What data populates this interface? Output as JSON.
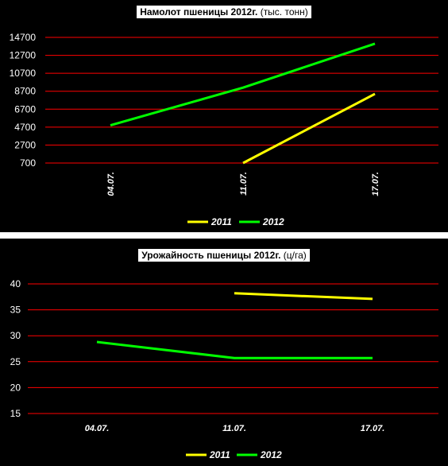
{
  "chart_data": [
    {
      "type": "line",
      "title_bold": "Намолот пшеницы 2012г.",
      "title_rest": " (тыс. тонн)",
      "categories": [
        "04.07.",
        "11.07.",
        "17.07."
      ],
      "yticks": [
        "14700",
        "12700",
        "10700",
        "8700",
        "6700",
        "4700",
        "2700",
        "700"
      ],
      "ylim": [
        700,
        14700
      ],
      "series": [
        {
          "name": "2011",
          "color": "#ffff00",
          "values": [
            null,
            700,
            8400
          ]
        },
        {
          "name": "2012",
          "color": "#00ff00",
          "values": [
            4900,
            9100,
            14000
          ]
        }
      ],
      "grid": true,
      "legend": "bottom",
      "xtick_rotated": true
    },
    {
      "type": "line",
      "title_bold": "Урожайность пшеницы 2012г.",
      "title_rest": " (ц/га)",
      "categories": [
        "04.07.",
        "11.07.",
        "17.07."
      ],
      "yticks": [
        "40",
        "35",
        "30",
        "25",
        "20",
        "15"
      ],
      "ylim": [
        15,
        40
      ],
      "series": [
        {
          "name": "2011",
          "color": "#ffff00",
          "values": [
            null,
            38.2,
            37.1
          ]
        },
        {
          "name": "2012",
          "color": "#00ff00",
          "values": [
            28.8,
            25.7,
            25.7
          ]
        }
      ],
      "grid": true,
      "legend": "bottom",
      "xtick_rotated": false
    }
  ],
  "colors": {
    "grid": "#ff0000",
    "background": "#000000"
  }
}
